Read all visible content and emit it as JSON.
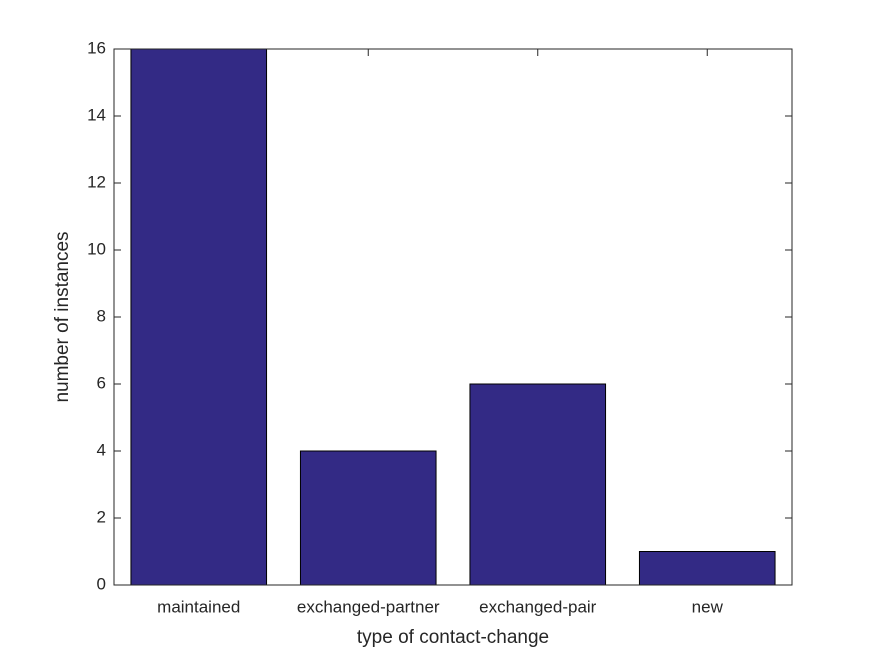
{
  "chart_data": {
    "type": "bar",
    "x_label": "type of contact-change",
    "y_label": "number of instances",
    "categories": [
      "maintained",
      "exchanged-partner",
      "exchanged-pair",
      "new"
    ],
    "values": [
      16,
      4,
      6,
      1
    ],
    "color": "#332a85",
    "ylim": [
      0,
      16
    ],
    "yticks": [
      0,
      2,
      4,
      6,
      8,
      10,
      12,
      14,
      16
    ],
    "grid": false
  }
}
